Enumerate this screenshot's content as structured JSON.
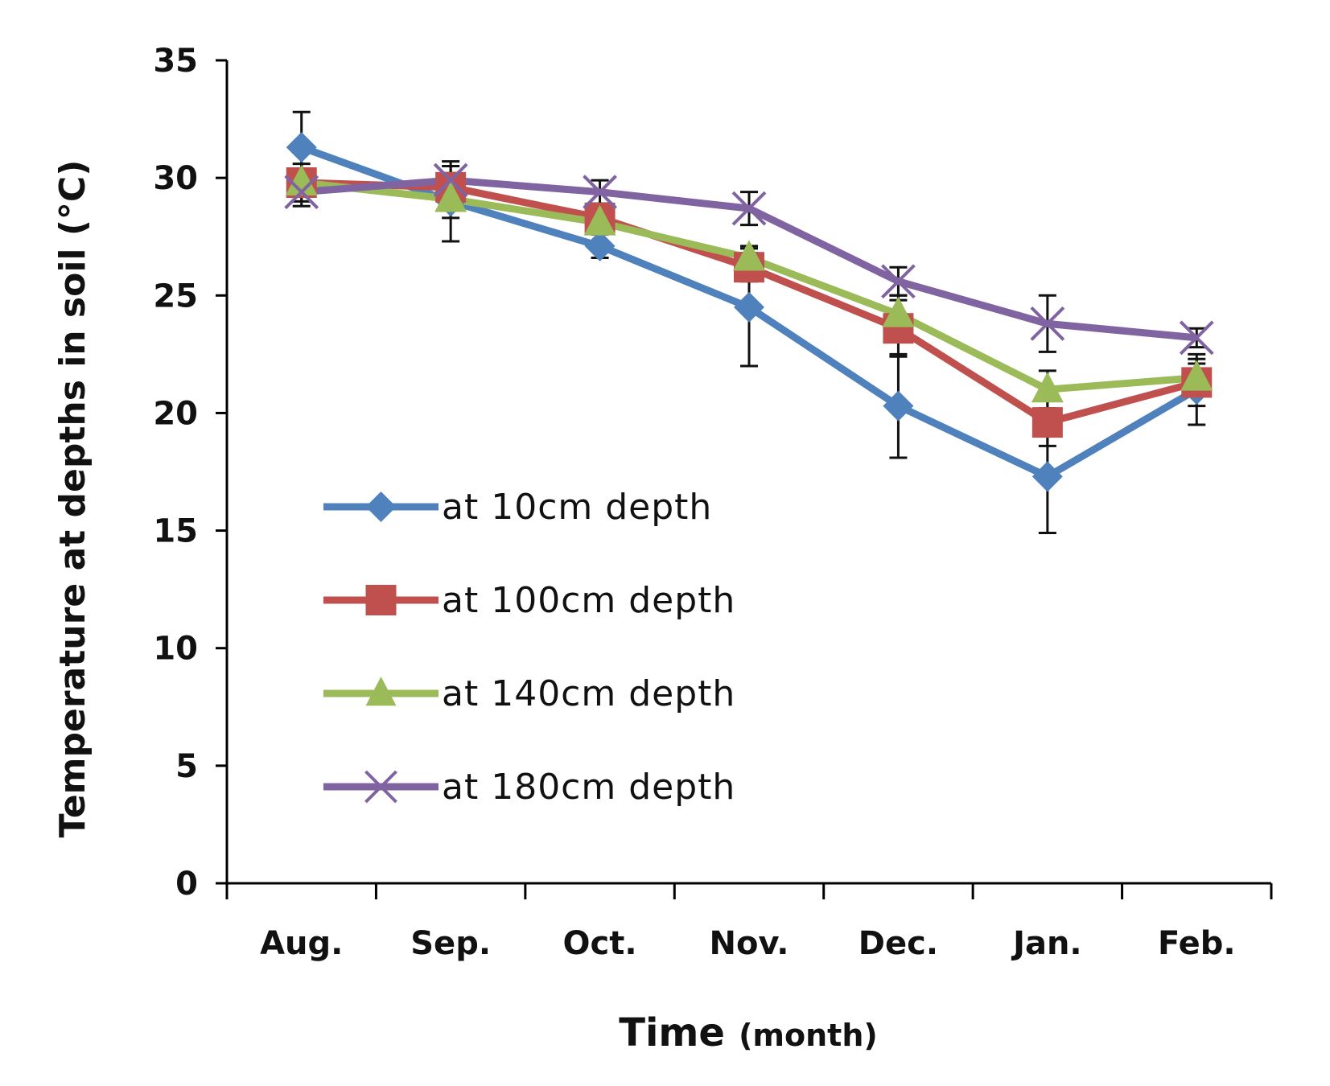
{
  "chart_data": {
    "type": "line",
    "title": "",
    "xlabel_main": "Time",
    "xlabel_sub": "(month)",
    "ylabel": "Temperature at depths in soil (°C)",
    "categories": [
      "Aug.",
      "Sep.",
      "Oct.",
      "Nov.",
      "Dec.",
      "Jan.",
      "Feb."
    ],
    "ylim": [
      0,
      35
    ],
    "yticks": [
      "0",
      "5",
      "10",
      "15",
      "20",
      "25",
      "30",
      "35"
    ],
    "grid": false,
    "legend_position": "left-center",
    "error_bars": true,
    "series": [
      {
        "name": "at 10cm depth",
        "color": "#4F81BD",
        "marker": "diamond",
        "values": [
          31.3,
          29.0,
          27.1,
          24.5,
          20.3,
          17.3,
          21.0
        ],
        "error": [
          1.5,
          1.7,
          0.5,
          2.5,
          2.2,
          2.4,
          1.5
        ]
      },
      {
        "name": "at 100cm depth",
        "color": "#C0504D",
        "marker": "square",
        "values": [
          29.8,
          29.6,
          28.3,
          26.2,
          23.6,
          19.6,
          21.3
        ],
        "error": [
          0.8,
          0.6,
          0.6,
          0.6,
          1.2,
          1.0,
          1.0
        ]
      },
      {
        "name": "at 140cm depth",
        "color": "#9BBB59",
        "marker": "triangle",
        "values": [
          29.8,
          29.1,
          28.1,
          26.6,
          24.2,
          21.0,
          21.5
        ],
        "error": [
          0.6,
          0.8,
          0.5,
          0.5,
          0.8,
          0.8,
          0.6
        ]
      },
      {
        "name": "at 180cm depth",
        "color": "#8064A2",
        "marker": "x",
        "values": [
          29.4,
          29.9,
          29.4,
          28.7,
          25.6,
          23.8,
          23.2
        ],
        "error": [
          0.6,
          0.6,
          0.5,
          0.7,
          0.6,
          1.2,
          0.4
        ]
      }
    ]
  }
}
